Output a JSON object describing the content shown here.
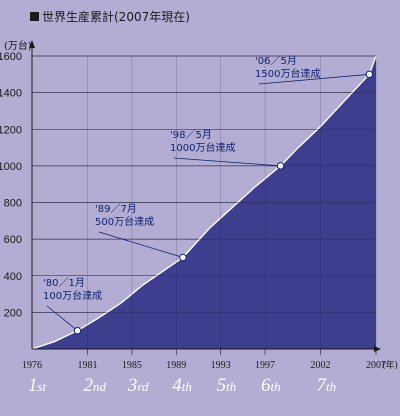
{
  "chart_data": {
    "type": "area",
    "title": "世界生産累計(2007年現在)",
    "ylabel": "(万台)",
    "xlabel": "(年)",
    "ylim": [
      0,
      1600
    ],
    "xlim": [
      1976,
      2007
    ],
    "y_ticks": [
      200,
      400,
      600,
      800,
      1000,
      1200,
      1400,
      1600
    ],
    "x_ticks": [
      {
        "value": 1976,
        "label": "1976"
      },
      {
        "value": 1981,
        "label": "1981"
      },
      {
        "value": 1985,
        "label": "1985"
      },
      {
        "value": 1989,
        "label": "1989"
      },
      {
        "value": 1993,
        "label": "1993"
      },
      {
        "value": 1997,
        "label": "1997"
      },
      {
        "value": 2002,
        "label": "2002"
      },
      {
        "value": 2007,
        "label": "2007"
      }
    ],
    "series": [
      {
        "x": [
          1976,
          1978,
          1980.1,
          1982,
          1984,
          1986,
          1989.6,
          1992,
          1994,
          1996,
          1998.4,
          2000,
          2002,
          2004,
          2006.4,
          2007
        ],
        "y": [
          0,
          40,
          100,
          170,
          250,
          350,
          500,
          660,
          770,
          880,
          1000,
          1100,
          1215,
          1345,
          1500,
          1600
        ]
      }
    ],
    "milestones": [
      {
        "x": 1980.1,
        "y": 100,
        "date": "'80／1月",
        "text": "100万台達成"
      },
      {
        "x": 1989.6,
        "y": 500,
        "date": "'89／7月",
        "text": "500万台達成"
      },
      {
        "x": 1998.4,
        "y": 1000,
        "date": "'98／5月",
        "text": "1000万台達成"
      },
      {
        "x": 2006.4,
        "y": 1500,
        "date": "'06／5月",
        "text": "1500万台達成"
      }
    ],
    "generations": [
      {
        "label": "1st",
        "x": 1976
      },
      {
        "label": "2nd",
        "x": 1981
      },
      {
        "label": "3rd",
        "x": 1985
      },
      {
        "label": "4th",
        "x": 1989
      },
      {
        "label": "5th",
        "x": 1993
      },
      {
        "label": "6th",
        "x": 1997
      },
      {
        "label": "7th",
        "x": 2002
      }
    ],
    "colors": {
      "background": "#b3acd3",
      "area": "#3d3f8e",
      "line": "#ffffff",
      "grid": "#1a1a3a",
      "text": "#1a1a1a",
      "annotation": "#0f2470",
      "generation": "#ffffff"
    }
  }
}
